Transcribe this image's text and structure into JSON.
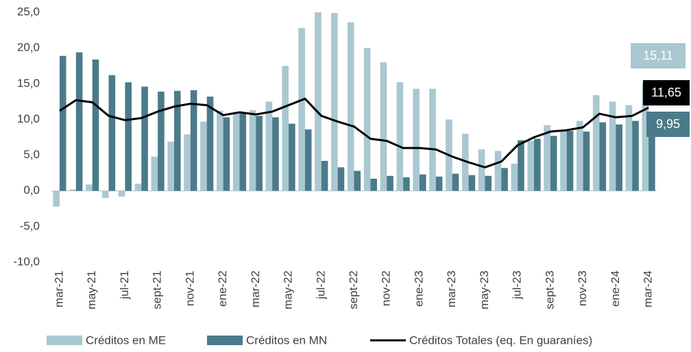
{
  "chart_data": {
    "type": "bar",
    "categories": [
      "mar-21",
      null,
      "may-21",
      null,
      "jul-21",
      null,
      "sept-21",
      null,
      "nov-21",
      null,
      "ene-22",
      null,
      "mar-22",
      null,
      "may-22",
      null,
      "jul-22",
      null,
      "sept-22",
      null,
      "nov-22",
      null,
      "ene-23",
      null,
      "mar-23",
      null,
      "may-23",
      null,
      "jul-23",
      null,
      "sept-23",
      null,
      "nov-23",
      null,
      "ene-24",
      null,
      "mar-24"
    ],
    "series": [
      {
        "name": "Créditos en ME",
        "type": "bar",
        "color": "#a9c8d1",
        "values": [
          -2.2,
          0.2,
          0.9,
          -1.0,
          -0.8,
          1.0,
          4.8,
          6.9,
          7.9,
          9.7,
          11.2,
          10.8,
          11.3,
          12.5,
          17.5,
          22.8,
          25.0,
          24.9,
          23.6,
          20.0,
          18.0,
          15.2,
          14.3,
          14.3,
          10.0,
          8.0,
          5.8,
          5.6,
          3.8,
          7.0,
          9.2,
          8.4,
          9.8,
          13.4,
          12.5,
          12.0,
          15.11
        ],
        "value_labels": [
          null,
          null,
          null,
          null,
          null,
          null,
          null,
          null,
          null,
          null,
          null,
          null,
          null,
          null,
          null,
          null,
          null,
          null,
          null,
          null,
          null,
          null,
          null,
          null,
          null,
          null,
          null,
          null,
          null,
          null,
          null,
          null,
          null,
          null,
          null,
          null,
          "15,11"
        ]
      },
      {
        "name": "Créditos en MN",
        "type": "bar",
        "color": "#4b7b8a",
        "values": [
          18.9,
          19.4,
          18.4,
          16.2,
          15.2,
          14.6,
          13.9,
          14.0,
          14.1,
          13.2,
          10.3,
          11.0,
          10.5,
          10.3,
          9.4,
          8.6,
          4.2,
          3.3,
          2.8,
          1.7,
          2.1,
          1.9,
          2.3,
          2.0,
          2.4,
          2.2,
          2.1,
          3.2,
          7.1,
          7.3,
          7.7,
          8.4,
          8.3,
          9.6,
          9.3,
          9.8,
          9.95
        ],
        "value_labels": [
          null,
          null,
          null,
          null,
          null,
          null,
          null,
          null,
          null,
          null,
          null,
          null,
          null,
          null,
          null,
          null,
          null,
          null,
          null,
          null,
          null,
          null,
          null,
          null,
          null,
          null,
          null,
          null,
          null,
          null,
          null,
          null,
          null,
          null,
          null,
          null,
          "9,95"
        ]
      },
      {
        "name": "Créditos Totales (eq. En guaraníes)",
        "type": "line",
        "color": "#000000",
        "values": [
          11.2,
          12.7,
          12.4,
          10.5,
          9.9,
          10.2,
          11.1,
          11.8,
          12.2,
          12.0,
          10.6,
          11.0,
          10.7,
          11.1,
          12.0,
          12.9,
          10.5,
          9.7,
          9.0,
          7.3,
          7.0,
          6.0,
          6.0,
          5.8,
          4.8,
          4.0,
          3.3,
          4.1,
          6.4,
          7.5,
          8.3,
          8.5,
          8.9,
          10.8,
          10.3,
          10.5,
          11.65
        ],
        "value_labels": [
          null,
          null,
          null,
          null,
          null,
          null,
          null,
          null,
          null,
          null,
          null,
          null,
          null,
          null,
          null,
          null,
          null,
          null,
          null,
          null,
          null,
          null,
          null,
          null,
          null,
          null,
          null,
          null,
          null,
          null,
          null,
          null,
          null,
          null,
          null,
          null,
          "11,65"
        ]
      }
    ],
    "ylim": [
      -10,
      25
    ],
    "yticks": [
      {
        "value": -10,
        "label": "-10,0"
      },
      {
        "value": -5,
        "label": "-5,0"
      },
      {
        "value": 0,
        "label": "0,0"
      },
      {
        "value": 5,
        "label": "5,0"
      },
      {
        "value": 10,
        "label": "10,0"
      },
      {
        "value": 15,
        "label": "15,0"
      },
      {
        "value": 20,
        "label": "20,0"
      },
      {
        "value": 25,
        "label": "25,0"
      }
    ],
    "grid": false,
    "legend": "bottom"
  }
}
